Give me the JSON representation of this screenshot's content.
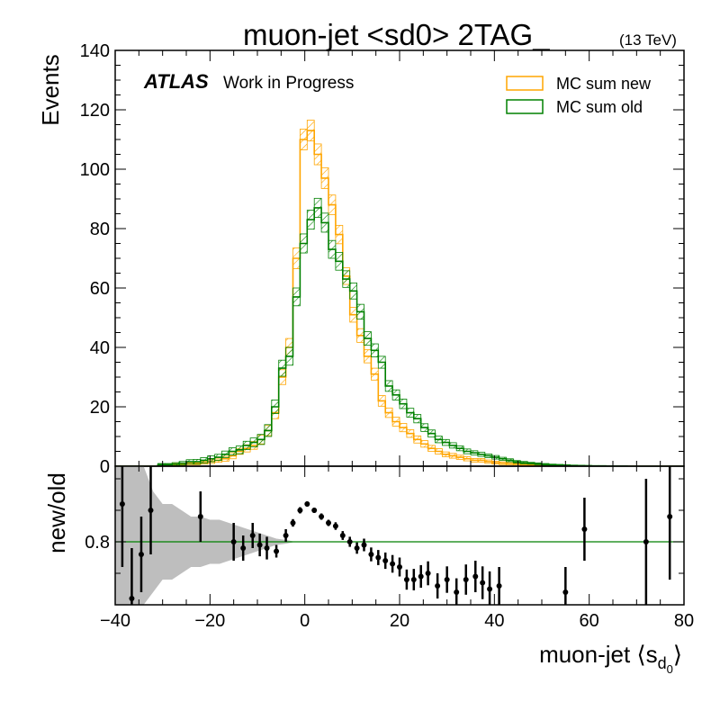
{
  "title": "muon-jet <sd0> 2TAG_",
  "energy_label": "(13 TeV)",
  "atlas_label": "ATLAS",
  "atlas_sublabel": "Work in Progress",
  "colors": {
    "new": "#ffa500",
    "old": "#008000",
    "band": "#bebebe",
    "ratio_line": "#008000",
    "points": "#000000"
  },
  "chart_data": [
    {
      "type": "step",
      "role": "main",
      "ylabel": "Events",
      "xlim": [
        -40,
        80
      ],
      "ylim": [
        0,
        140
      ],
      "yticks": [
        0,
        20,
        40,
        60,
        80,
        100,
        120,
        140
      ],
      "bin_edges": [
        -40,
        80
      ],
      "bin_width": 1.5,
      "series": [
        {
          "name": "MC sum new",
          "key": "new",
          "values": [
            0,
            0,
            0,
            0,
            0,
            0,
            0.3,
            0.4,
            0.5,
            0.7,
            1.0,
            1.0,
            1.2,
            1.5,
            2.0,
            2.5,
            3.5,
            5,
            6,
            7,
            9,
            12,
            18,
            30,
            40,
            70,
            110,
            113,
            105,
            97,
            88,
            78,
            64,
            51,
            44,
            37,
            31,
            22,
            18,
            15,
            13,
            11,
            9,
            7.5,
            6,
            5,
            4,
            3.5,
            3,
            2.5,
            2,
            2,
            1.5,
            1.2,
            1,
            0.9,
            0.8,
            0.6,
            0.5,
            0.4,
            0.3,
            0.2,
            0.15,
            0.1,
            0.1,
            0.05,
            0.05,
            0.05,
            0.05,
            0.05,
            0,
            0,
            0,
            0,
            0,
            0,
            0,
            0,
            0,
            0
          ],
          "errors": [
            0,
            0,
            0,
            0,
            0,
            0,
            0.3,
            0.3,
            0.4,
            0.4,
            0.5,
            0.5,
            0.5,
            0.6,
            0.7,
            0.8,
            1,
            1,
            1.2,
            1.3,
            1.5,
            1.7,
            2,
            2.5,
            3,
            3.5,
            3.5,
            3.5,
            3.5,
            3.5,
            3.3,
            3.1,
            2.8,
            2.5,
            2.3,
            2.2,
            2,
            1.8,
            1.6,
            1.5,
            1.4,
            1.3,
            1.2,
            1.1,
            1,
            0.9,
            0.8,
            0.8,
            0.7,
            0.7,
            0.6,
            0.6,
            0.6,
            0.5,
            0.5,
            0.5,
            0.4,
            0.4,
            0.3,
            0.3,
            0.3,
            0.2,
            0.2,
            0.2,
            0.1,
            0.1,
            0.1,
            0.1,
            0.1,
            0.1,
            0,
            0,
            0,
            0,
            0,
            0,
            0,
            0,
            0,
            0
          ]
        },
        {
          "name": "MC sum old",
          "key": "old",
          "values": [
            0,
            0,
            0,
            0,
            0,
            0,
            0.5,
            0.5,
            0.7,
            1,
            1.5,
            1.5,
            2,
            2.5,
            3,
            4,
            5,
            5.5,
            7,
            8,
            9,
            12,
            20,
            33,
            37,
            57,
            75,
            83,
            87,
            82,
            73,
            69,
            63,
            59,
            52,
            43,
            39,
            35,
            27,
            24,
            21,
            18,
            16,
            13,
            11,
            9,
            8,
            7,
            6,
            5,
            4.5,
            4,
            3.5,
            3,
            2.5,
            2,
            1.5,
            1.2,
            1,
            0.8,
            0.6,
            0.5,
            0.4,
            0.3,
            0.25,
            0.2,
            0.15,
            0.1,
            0.1,
            0.05,
            0.05,
            0.05,
            0,
            0,
            0,
            0,
            0,
            0,
            0,
            0
          ],
          "errors": [
            0,
            0,
            0,
            0,
            0,
            0,
            0.4,
            0.4,
            0.5,
            0.6,
            0.7,
            0.8,
            0.9,
            1,
            1,
            1.1,
            1.2,
            1.3,
            1.4,
            1.5,
            1.7,
            2,
            2.3,
            2.7,
            3,
            3,
            3.2,
            3.2,
            3.2,
            3.2,
            3,
            3,
            2.8,
            2.7,
            2.5,
            2.3,
            2.2,
            2,
            1.8,
            1.7,
            1.6,
            1.5,
            1.4,
            1.3,
            1.2,
            1.1,
            1,
            0.9,
            0.8,
            0.8,
            0.7,
            0.7,
            0.6,
            0.6,
            0.5,
            0.5,
            0.4,
            0.4,
            0.3,
            0.3,
            0.3,
            0.2,
            0.2,
            0.2,
            0.1,
            0.1,
            0.1,
            0.1,
            0.1,
            0.1,
            0,
            0,
            0,
            0,
            0,
            0,
            0,
            0,
            0,
            0
          ]
        }
      ],
      "legend": {
        "placement": "top-right",
        "entries": [
          "MC sum new",
          "MC sum old"
        ]
      }
    },
    {
      "type": "scatter",
      "role": "ratio",
      "ylabel": "new/old",
      "xlabel": "muon-jet ⟨s",
      "xlabel_sub": "d",
      "xlabel_subsub": "0",
      "xlabel_close": "⟩",
      "xlim": [
        -40,
        80
      ],
      "ylim": [
        0.7,
        0.92
      ],
      "xticks": [
        -40,
        -20,
        0,
        20,
        40,
        60,
        80
      ],
      "yticks": [
        0.8
      ],
      "reference_line": 0.8,
      "band": {
        "x": [
          -40,
          -38,
          -36,
          -34,
          -32,
          -30,
          -28,
          -26,
          -24,
          -22,
          -20,
          -18,
          -16,
          -14,
          -12,
          -10,
          -8,
          -6,
          -4,
          -2,
          0,
          2,
          4,
          6,
          8,
          10,
          12,
          14,
          16,
          18,
          20,
          22,
          24,
          26,
          28,
          30,
          32,
          34,
          36,
          38,
          40,
          42,
          44,
          46,
          48,
          50,
          52,
          54,
          56,
          58,
          60,
          62,
          64,
          66,
          68,
          70,
          72,
          74,
          76,
          78,
          80
        ],
        "lower": [
          0.7,
          0.7,
          0.7,
          0.7,
          0.72,
          0.74,
          0.74,
          0.75,
          0.76,
          0.76,
          0.765,
          0.765,
          0.77,
          0.775,
          0.78,
          0.785,
          0.79,
          0.795,
          0.797,
          0.8,
          0.8,
          0.8,
          0.8,
          0.8,
          0.8,
          0.8,
          0.8,
          0.8,
          0.8,
          0.8,
          0.8,
          0.8,
          0.8,
          0.8,
          0.8,
          0.8,
          0.8,
          0.8,
          0.8,
          0.8,
          0.8,
          0.8,
          0.8,
          0.8,
          0.8,
          0.8,
          0.8,
          0.8,
          0.8,
          0.8,
          0.8,
          0.8,
          0.8,
          0.8,
          0.8,
          0.8,
          0.8,
          0.8,
          0.8,
          0.8,
          0.8
        ],
        "upper": [
          0.92,
          0.92,
          0.92,
          0.92,
          0.88,
          0.86,
          0.86,
          0.85,
          0.84,
          0.84,
          0.835,
          0.835,
          0.83,
          0.825,
          0.82,
          0.815,
          0.81,
          0.805,
          0.803,
          0.8,
          0.8,
          0.8,
          0.8,
          0.8,
          0.8,
          0.8,
          0.8,
          0.8,
          0.8,
          0.8,
          0.8,
          0.8,
          0.8,
          0.8,
          0.8,
          0.8,
          0.8,
          0.8,
          0.8,
          0.8,
          0.8,
          0.8,
          0.8,
          0.8,
          0.8,
          0.8,
          0.8,
          0.8,
          0.8,
          0.8,
          0.8,
          0.8,
          0.8,
          0.8,
          0.8,
          0.8,
          0.8,
          0.8,
          0.8,
          0.8,
          0.8
        ]
      },
      "points": [
        {
          "x": -38.5,
          "y": 0.86,
          "err": 0.1
        },
        {
          "x": -36.5,
          "y": 0.71,
          "err": 0.08
        },
        {
          "x": -34.5,
          "y": 0.78,
          "err": 0.06
        },
        {
          "x": -32.5,
          "y": 0.85,
          "err": 0.07
        },
        {
          "x": -22,
          "y": 0.84,
          "err": 0.04
        },
        {
          "x": -15,
          "y": 0.8,
          "err": 0.03
        },
        {
          "x": -13,
          "y": 0.79,
          "err": 0.02
        },
        {
          "x": -11,
          "y": 0.81,
          "err": 0.02
        },
        {
          "x": -9.5,
          "y": 0.795,
          "err": 0.018
        },
        {
          "x": -8,
          "y": 0.79,
          "err": 0.018
        },
        {
          "x": -6,
          "y": 0.785,
          "err": 0.01
        },
        {
          "x": -4,
          "y": 0.81,
          "err": 0.01
        },
        {
          "x": -2.5,
          "y": 0.83,
          "err": 0.006
        },
        {
          "x": -1,
          "y": 0.85,
          "err": 0.005
        },
        {
          "x": 0.5,
          "y": 0.86,
          "err": 0.004
        },
        {
          "x": 2,
          "y": 0.85,
          "err": 0.004
        },
        {
          "x": 3.5,
          "y": 0.84,
          "err": 0.005
        },
        {
          "x": 5,
          "y": 0.83,
          "err": 0.005
        },
        {
          "x": 6.5,
          "y": 0.825,
          "err": 0.006
        },
        {
          "x": 8,
          "y": 0.81,
          "err": 0.007
        },
        {
          "x": 9.5,
          "y": 0.8,
          "err": 0.008
        },
        {
          "x": 11,
          "y": 0.79,
          "err": 0.009
        },
        {
          "x": 12.5,
          "y": 0.795,
          "err": 0.01
        },
        {
          "x": 14,
          "y": 0.78,
          "err": 0.011
        },
        {
          "x": 15.5,
          "y": 0.775,
          "err": 0.012
        },
        {
          "x": 17,
          "y": 0.77,
          "err": 0.013
        },
        {
          "x": 18.5,
          "y": 0.765,
          "err": 0.014
        },
        {
          "x": 20,
          "y": 0.76,
          "err": 0.015
        },
        {
          "x": 21.5,
          "y": 0.74,
          "err": 0.016
        },
        {
          "x": 23,
          "y": 0.74,
          "err": 0.017
        },
        {
          "x": 24.5,
          "y": 0.745,
          "err": 0.018
        },
        {
          "x": 26,
          "y": 0.75,
          "err": 0.019
        },
        {
          "x": 28,
          "y": 0.73,
          "err": 0.02
        },
        {
          "x": 30,
          "y": 0.74,
          "err": 0.021
        },
        {
          "x": 32,
          "y": 0.72,
          "err": 0.022
        },
        {
          "x": 34,
          "y": 0.74,
          "err": 0.024
        },
        {
          "x": 36,
          "y": 0.745,
          "err": 0.025
        },
        {
          "x": 37.5,
          "y": 0.735,
          "err": 0.026
        },
        {
          "x": 39,
          "y": 0.725,
          "err": 0.028
        },
        {
          "x": 41,
          "y": 0.73,
          "err": 0.03
        },
        {
          "x": 55,
          "y": 0.72,
          "err": 0.04
        },
        {
          "x": 59,
          "y": 0.82,
          "err": 0.05
        },
        {
          "x": 72,
          "y": 0.8,
          "err": 0.1
        },
        {
          "x": 77,
          "y": 0.84,
          "err": 0.1
        }
      ]
    }
  ]
}
